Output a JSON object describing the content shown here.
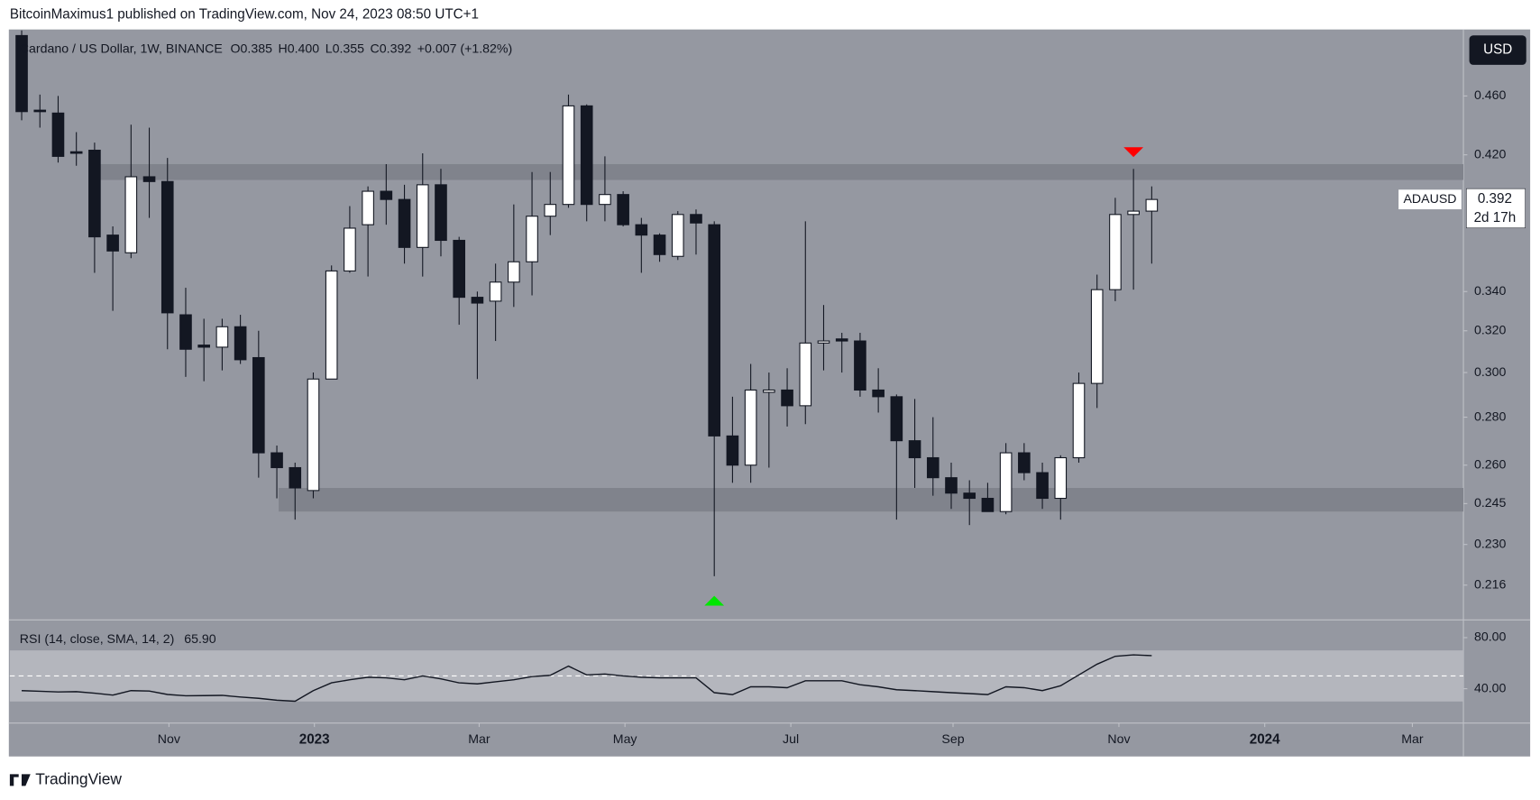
{
  "header": {
    "attribution": "BitcoinMaximus1 published on TradingView.com, Nov 24, 2023 08:50 UTC+1",
    "footer": "TradingView"
  },
  "chart_data": [
    {
      "type": "candlestick",
      "title": "Cardano / US Dollar, 1W, BINANCE",
      "legend_values": [
        {
          "key": "O",
          "value": "0.385"
        },
        {
          "key": "H",
          "value": "0.400"
        },
        {
          "key": "L",
          "value": "0.355"
        },
        {
          "key": "C",
          "value": "0.392"
        }
      ],
      "change": "+0.007 (+1.82%)",
      "symbol": "ADAUSD",
      "last_price": "0.392",
      "countdown": "2d 17h",
      "currency": "USD",
      "log_scale": true,
      "up_color": "#ffffff",
      "down_color": "#131722",
      "open": [
        0.505,
        0.45,
        0.448,
        0.422,
        0.423,
        0.371,
        0.361,
        0.406,
        0.403,
        0.328,
        0.313,
        0.312,
        0.322,
        0.307,
        0.265,
        0.259,
        0.25,
        0.297,
        0.351,
        0.377,
        0.397,
        0.392,
        0.364,
        0.401,
        0.368,
        0.337,
        0.335,
        0.345,
        0.356,
        0.382,
        0.389,
        0.453,
        0.389,
        0.395,
        0.377,
        0.371,
        0.359,
        0.383,
        0.377,
        0.272,
        0.26,
        0.291,
        0.292,
        0.285,
        0.314,
        0.316,
        0.315,
        0.292,
        0.289,
        0.27,
        0.263,
        0.255,
        0.249,
        0.247,
        0.242,
        0.265,
        0.257,
        0.247,
        0.263,
        0.295,
        0.341,
        0.383,
        0.385
      ],
      "high": [
        0.515,
        0.461,
        0.46,
        0.435,
        0.428,
        0.376,
        0.44,
        0.438,
        0.418,
        0.342,
        0.326,
        0.326,
        0.328,
        0.32,
        0.268,
        0.261,
        0.3,
        0.354,
        0.388,
        0.4,
        0.414,
        0.401,
        0.421,
        0.411,
        0.37,
        0.34,
        0.355,
        0.389,
        0.409,
        0.409,
        0.461,
        0.454,
        0.419,
        0.397,
        0.381,
        0.372,
        0.385,
        0.386,
        0.379,
        0.289,
        0.304,
        0.3,
        0.302,
        0.379,
        0.333,
        0.319,
        0.319,
        0.302,
        0.29,
        0.288,
        0.28,
        0.261,
        0.254,
        0.253,
        0.269,
        0.269,
        0.261,
        0.264,
        0.3,
        0.349,
        0.393,
        0.411,
        0.4
      ],
      "low": [
        0.443,
        0.438,
        0.415,
        0.413,
        0.35,
        0.33,
        0.358,
        0.381,
        0.311,
        0.298,
        0.296,
        0.301,
        0.304,
        0.255,
        0.247,
        0.239,
        0.247,
        0.297,
        0.35,
        0.348,
        0.377,
        0.355,
        0.348,
        0.359,
        0.323,
        0.297,
        0.315,
        0.332,
        0.338,
        0.371,
        0.387,
        0.379,
        0.379,
        0.376,
        0.35,
        0.356,
        0.357,
        0.36,
        0.219,
        0.253,
        0.253,
        0.259,
        0.276,
        0.277,
        0.301,
        0.3,
        0.289,
        0.282,
        0.239,
        0.251,
        0.248,
        0.243,
        0.237,
        0.242,
        0.241,
        0.254,
        0.243,
        0.239,
        0.261,
        0.284,
        0.335,
        0.341,
        0.355
      ],
      "close": [
        0.449,
        0.449,
        0.419,
        0.421,
        0.37,
        0.362,
        0.406,
        0.403,
        0.329,
        0.311,
        0.312,
        0.322,
        0.306,
        0.265,
        0.259,
        0.251,
        0.297,
        0.351,
        0.375,
        0.397,
        0.392,
        0.364,
        0.401,
        0.368,
        0.337,
        0.334,
        0.345,
        0.356,
        0.382,
        0.389,
        0.453,
        0.389,
        0.395,
        0.377,
        0.371,
        0.36,
        0.383,
        0.378,
        0.272,
        0.26,
        0.292,
        0.292,
        0.285,
        0.314,
        0.315,
        0.315,
        0.292,
        0.289,
        0.27,
        0.263,
        0.255,
        0.249,
        0.247,
        0.242,
        0.265,
        0.257,
        0.247,
        0.263,
        0.295,
        0.341,
        0.383,
        0.385,
        0.392
      ],
      "xlim": [
        -0.65,
        79.1
      ],
      "xticks": [
        {
          "value": 8.08,
          "label": "Nov"
        },
        {
          "value": 16.06,
          "label": "2023"
        },
        {
          "value": 25.1,
          "label": "Mar"
        },
        {
          "value": 33.1,
          "label": "May"
        },
        {
          "value": 42.2,
          "label": "Jul"
        },
        {
          "value": 51.1,
          "label": "Sep"
        },
        {
          "value": 60.2,
          "label": "Nov"
        },
        {
          "value": 68.2,
          "label": "2024"
        },
        {
          "value": 76.3,
          "label": "Mar"
        }
      ],
      "ylim": [
        0.205,
        0.509
      ],
      "yticks": [
        {
          "value": 0.46,
          "label": "0.460"
        },
        {
          "value": 0.42,
          "label": "0.420"
        },
        {
          "value": 0.34,
          "label": "0.340"
        },
        {
          "value": 0.32,
          "label": "0.320"
        },
        {
          "value": 0.3,
          "label": "0.300"
        },
        {
          "value": 0.28,
          "label": "0.280"
        },
        {
          "value": 0.26,
          "label": "0.260"
        },
        {
          "value": 0.245,
          "label": "0.245"
        },
        {
          "value": 0.23,
          "label": "0.230"
        },
        {
          "value": 0.216,
          "label": "0.216"
        }
      ],
      "zones": [
        {
          "from": 4.2,
          "low": 0.404,
          "high": 0.414,
          "color": "#80838c"
        },
        {
          "from": 14.1,
          "low": 0.242,
          "high": 0.251,
          "color": "#80838c"
        }
      ],
      "markers": [
        {
          "index": 61,
          "direction": "down",
          "color": "#ff0000"
        },
        {
          "index": 38,
          "direction": "up",
          "color": "#00e600"
        }
      ]
    },
    {
      "type": "line",
      "title": "RSI (14, close, SMA, 14, 2)",
      "value_label": "65.90",
      "color": "#131722",
      "values": [
        38.5,
        38,
        37.5,
        37.7,
        36.5,
        35,
        38.5,
        38.2,
        35.5,
        34.5,
        34.6,
        34.8,
        33.5,
        32.5,
        31,
        30.2,
        38.5,
        44.6,
        47,
        49,
        48.5,
        47,
        50,
        47.7,
        44.6,
        43.8,
        45.4,
        47,
        49.5,
        50.5,
        57.7,
        50.8,
        51.5,
        50,
        49,
        48.5,
        48.5,
        48.5,
        36.9,
        35.4,
        41.5,
        41.5,
        40.8,
        46.2,
        46.2,
        46.2,
        43.1,
        41.5,
        39.2,
        38.5,
        37.7,
        36.9,
        36.2,
        35.4,
        41.5,
        40.8,
        38.5,
        42.3,
        50.8,
        59.2,
        65.4,
        66.5,
        65.9
      ],
      "xlim": [
        -0.65,
        79.1
      ],
      "ylim": [
        13.1,
        93.1
      ],
      "yticks": [
        {
          "value": 80,
          "label": "80.00"
        },
        {
          "value": 40,
          "label": "40.00"
        }
      ],
      "band": [
        30,
        70
      ],
      "midline": 50
    }
  ]
}
